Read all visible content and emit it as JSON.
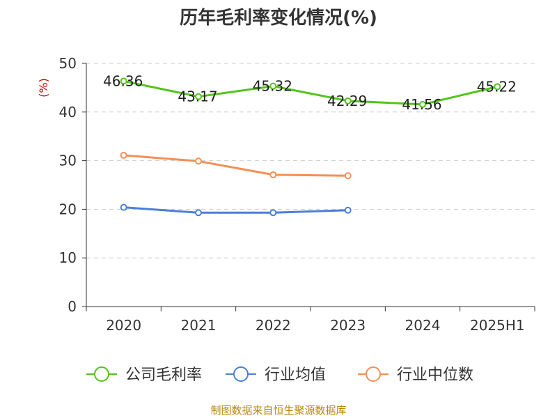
{
  "chart_data": {
    "type": "line",
    "title": "历年毛利率变化情况(%)",
    "unit_label": "(%)",
    "categories": [
      "2020",
      "2021",
      "2022",
      "2023",
      "2024",
      "2025H1"
    ],
    "ylim": [
      0,
      50
    ],
    "yticks": [
      0,
      10,
      20,
      30,
      40,
      50
    ],
    "grid": true,
    "legend_position": "bottom",
    "series": [
      {
        "name": "公司毛利率",
        "color": "#52c41a",
        "values": [
          46.36,
          43.17,
          45.32,
          42.29,
          41.56,
          45.22
        ],
        "labels": [
          "46.36",
          "43.17",
          "45.32",
          "42.29",
          "41.56",
          "45.22"
        ],
        "show_labels": true
      },
      {
        "name": "行业均值",
        "color": "#4a7fd8",
        "values": [
          20.4,
          19.3,
          19.3,
          19.8,
          null,
          null
        ],
        "show_labels": false
      },
      {
        "name": "行业中位数",
        "color": "#f58f55",
        "values": [
          31.1,
          29.9,
          27.1,
          26.9,
          null,
          null
        ],
        "show_labels": false
      }
    ],
    "source": "制图数据来自恒生聚源数据库"
  }
}
